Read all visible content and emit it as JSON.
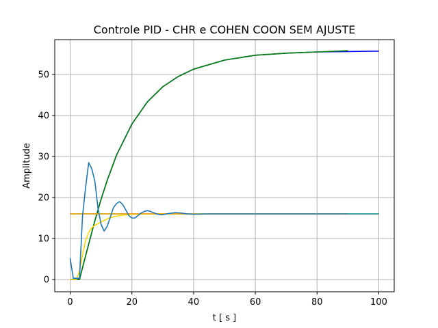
{
  "chart_data": {
    "type": "line",
    "title": "Controle PID - CHR e COHEN COON SEM AJUSTE",
    "xlabel": "t [ s ]",
    "ylabel": "Amplitude",
    "xlim": [
      -5,
      105
    ],
    "ylim": [
      -3,
      58.5
    ],
    "xticks": [
      0,
      20,
      40,
      60,
      80,
      100
    ],
    "yticks": [
      0,
      10,
      20,
      30,
      40,
      50
    ],
    "grid": true,
    "legend": "none",
    "series": [
      {
        "color": "#0000ff",
        "x": [
          0,
          3,
          5,
          8,
          10,
          12,
          15,
          20,
          25,
          30,
          35,
          40,
          50,
          60,
          70,
          80,
          90,
          100
        ],
        "y": [
          0,
          0,
          5.8,
          14.3,
          19.5,
          24.2,
          30.3,
          37.9,
          43.3,
          47.0,
          49.5,
          51.3,
          53.5,
          54.7,
          55.2,
          55.5,
          55.6,
          55.7
        ]
      },
      {
        "color": "#008000",
        "x": [
          0,
          3,
          5,
          8,
          10,
          12,
          15,
          20,
          25,
          30,
          35,
          40,
          50,
          60,
          70,
          80,
          90
        ],
        "y": [
          0,
          0,
          5.8,
          14.3,
          19.5,
          24.2,
          30.3,
          37.9,
          43.3,
          47.0,
          49.5,
          51.3,
          53.5,
          54.7,
          55.2,
          55.5,
          55.8
        ]
      },
      {
        "color": "#008080",
        "x": [
          0,
          10,
          20,
          30,
          40,
          50,
          60,
          70,
          80,
          90,
          100
        ],
        "y": [
          16,
          16,
          16,
          16,
          16,
          16,
          16,
          16,
          16,
          16,
          16
        ]
      },
      {
        "color": "#ffd700",
        "x": [
          0,
          2,
          3,
          4,
          5,
          6,
          7,
          8,
          10,
          12,
          14,
          16,
          20,
          30,
          40,
          60,
          90
        ],
        "y": [
          0,
          0,
          2,
          6,
          9.5,
          11.5,
          12.6,
          13.2,
          14.0,
          14.8,
          15.3,
          15.6,
          15.9,
          16,
          16,
          16,
          16
        ]
      },
      {
        "color": "#ffa500",
        "x": [
          0,
          90
        ],
        "y": [
          16,
          16
        ]
      },
      {
        "color": "#1f77b4",
        "x": [
          0,
          1,
          2,
          3,
          4,
          5,
          6,
          7,
          8,
          9,
          10,
          11,
          12,
          13,
          14,
          15,
          16,
          17,
          18,
          19,
          20,
          21,
          22,
          23,
          24,
          25,
          26,
          27,
          28,
          29,
          30,
          32,
          34,
          36,
          38,
          40,
          45,
          50,
          60,
          70,
          80,
          90
        ],
        "y": [
          5.2,
          0.3,
          0.3,
          0.3,
          15.5,
          22.5,
          28.5,
          27,
          24,
          17.5,
          13.5,
          11.8,
          13.0,
          15.2,
          17.5,
          18.5,
          19.0,
          18.3,
          17.0,
          15.6,
          15.0,
          15.0,
          15.6,
          16.2,
          16.6,
          16.8,
          16.6,
          16.3,
          16.0,
          15.8,
          15.8,
          16.1,
          16.3,
          16.2,
          16.0,
          15.9,
          16.0,
          16.0,
          16.0,
          16.0,
          16.0,
          16.0
        ]
      }
    ]
  }
}
